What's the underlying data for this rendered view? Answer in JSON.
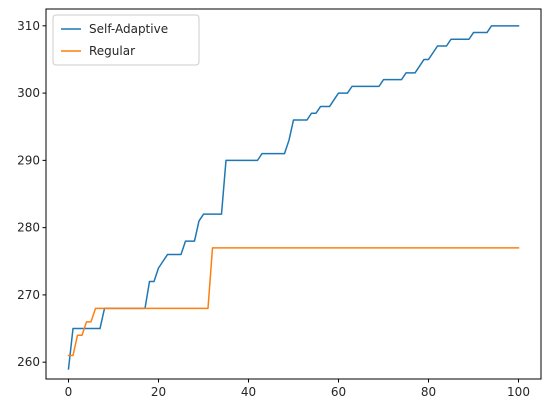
{
  "chart_data": {
    "type": "line",
    "title": "",
    "xlabel": "",
    "ylabel": "",
    "xlim": [
      -5,
      105
    ],
    "ylim": [
      257.5,
      312.5
    ],
    "xticks": [
      0,
      20,
      40,
      60,
      80,
      100
    ],
    "yticks": [
      260,
      270,
      280,
      290,
      300,
      310
    ],
    "grid": false,
    "legend_position": "upper-left",
    "series": [
      {
        "name": "Self-Adaptive",
        "color": "#1f77b4",
        "points": [
          [
            0,
            259
          ],
          [
            1,
            265
          ],
          [
            2,
            265
          ],
          [
            3,
            265
          ],
          [
            4,
            265
          ],
          [
            5,
            265
          ],
          [
            6,
            265
          ],
          [
            7,
            265
          ],
          [
            8,
            268
          ],
          [
            9,
            268
          ],
          [
            10,
            268
          ],
          [
            11,
            268
          ],
          [
            12,
            268
          ],
          [
            13,
            268
          ],
          [
            14,
            268
          ],
          [
            15,
            268
          ],
          [
            16,
            268
          ],
          [
            17,
            268
          ],
          [
            18,
            272
          ],
          [
            19,
            272
          ],
          [
            20,
            274
          ],
          [
            21,
            275
          ],
          [
            22,
            276
          ],
          [
            23,
            276
          ],
          [
            24,
            276
          ],
          [
            25,
            276
          ],
          [
            26,
            278
          ],
          [
            27,
            278
          ],
          [
            28,
            278
          ],
          [
            29,
            281
          ],
          [
            30,
            282
          ],
          [
            31,
            282
          ],
          [
            32,
            282
          ],
          [
            33,
            282
          ],
          [
            34,
            282
          ],
          [
            35,
            290
          ],
          [
            36,
            290
          ],
          [
            37,
            290
          ],
          [
            38,
            290
          ],
          [
            39,
            290
          ],
          [
            40,
            290
          ],
          [
            41,
            290
          ],
          [
            42,
            290
          ],
          [
            43,
            291
          ],
          [
            44,
            291
          ],
          [
            45,
            291
          ],
          [
            46,
            291
          ],
          [
            47,
            291
          ],
          [
            48,
            291
          ],
          [
            49,
            293
          ],
          [
            50,
            296
          ],
          [
            51,
            296
          ],
          [
            52,
            296
          ],
          [
            53,
            296
          ],
          [
            54,
            297
          ],
          [
            55,
            297
          ],
          [
            56,
            298
          ],
          [
            57,
            298
          ],
          [
            58,
            298
          ],
          [
            59,
            299
          ],
          [
            60,
            300
          ],
          [
            61,
            300
          ],
          [
            62,
            300
          ],
          [
            63,
            301
          ],
          [
            64,
            301
          ],
          [
            65,
            301
          ],
          [
            66,
            301
          ],
          [
            67,
            301
          ],
          [
            68,
            301
          ],
          [
            69,
            301
          ],
          [
            70,
            302
          ],
          [
            71,
            302
          ],
          [
            72,
            302
          ],
          [
            73,
            302
          ],
          [
            74,
            302
          ],
          [
            75,
            303
          ],
          [
            76,
            303
          ],
          [
            77,
            303
          ],
          [
            78,
            304
          ],
          [
            79,
            305
          ],
          [
            80,
            305
          ],
          [
            81,
            306
          ],
          [
            82,
            307
          ],
          [
            83,
            307
          ],
          [
            84,
            307
          ],
          [
            85,
            308
          ],
          [
            86,
            308
          ],
          [
            87,
            308
          ],
          [
            88,
            308
          ],
          [
            89,
            308
          ],
          [
            90,
            309
          ],
          [
            91,
            309
          ],
          [
            92,
            309
          ],
          [
            93,
            309
          ],
          [
            94,
            310
          ],
          [
            95,
            310
          ],
          [
            96,
            310
          ],
          [
            97,
            310
          ],
          [
            98,
            310
          ],
          [
            99,
            310
          ],
          [
            100,
            310
          ]
        ]
      },
      {
        "name": "Regular",
        "color": "#ff7f0e",
        "points": [
          [
            0,
            261
          ],
          [
            1,
            261
          ],
          [
            2,
            264
          ],
          [
            3,
            264
          ],
          [
            4,
            266
          ],
          [
            5,
            266
          ],
          [
            6,
            268
          ],
          [
            7,
            268
          ],
          [
            8,
            268
          ],
          [
            10,
            268
          ],
          [
            15,
            268
          ],
          [
            20,
            268
          ],
          [
            25,
            268
          ],
          [
            30,
            268
          ],
          [
            31,
            268
          ],
          [
            32,
            277
          ],
          [
            35,
            277
          ],
          [
            40,
            277
          ],
          [
            50,
            277
          ],
          [
            60,
            277
          ],
          [
            70,
            277
          ],
          [
            80,
            277
          ],
          [
            90,
            277
          ],
          [
            100,
            277
          ]
        ]
      }
    ]
  }
}
